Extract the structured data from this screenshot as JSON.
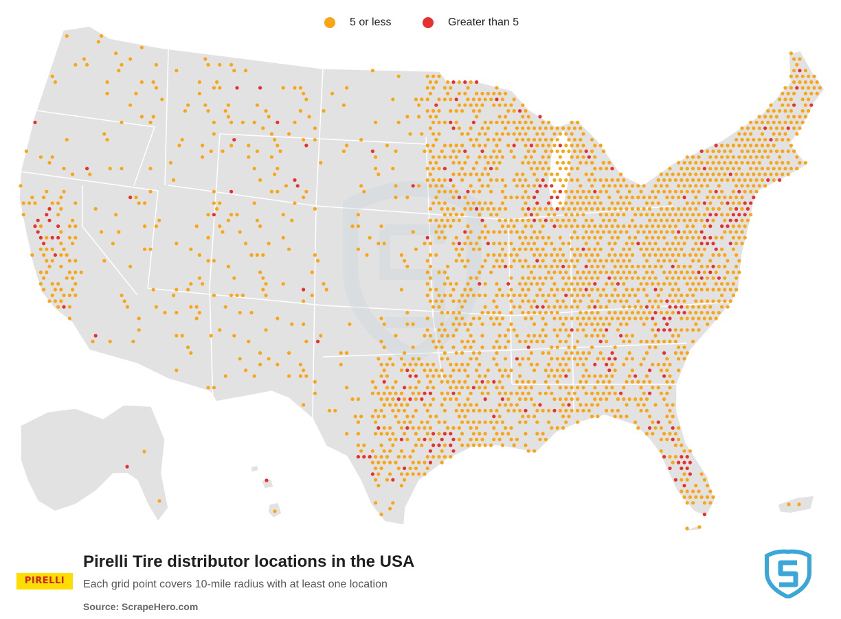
{
  "legend": [
    {
      "label": "5 or less",
      "color": "#f9a514"
    },
    {
      "label": "Greater than 5",
      "color": "#e8302f"
    }
  ],
  "colors": {
    "land": "#e2e2e2",
    "border": "#ffffff",
    "watermark": "#c9d6dd"
  },
  "title": "Pirelli Tire distributor locations in the USA",
  "subtitle": "Each grid point covers 10-mile radius with at least one location",
  "source": "Source: ScrapeHero.com",
  "brand_logo_text": "PIRELLI",
  "icons": {
    "scrapehero_logo": "shield-s-icon",
    "watermark": "shield-s-watermark-icon"
  }
}
